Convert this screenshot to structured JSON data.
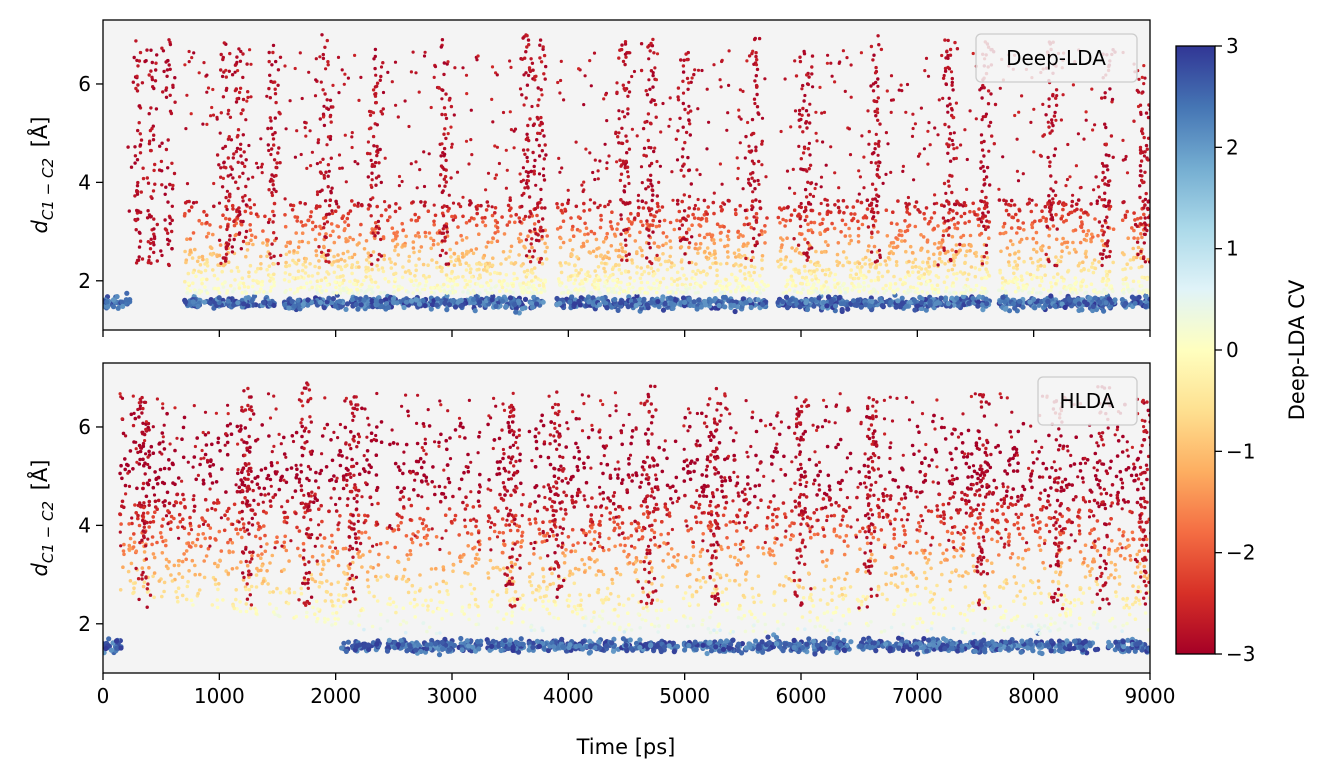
{
  "chart_data": [
    {
      "type": "scatter",
      "panel": "top",
      "legend": "Deep-LDA",
      "legend_position": "upper right",
      "ylabel": "d",
      "ylabel_subscript": "C1 − C2",
      "ylabel_unit": "[Å]",
      "xlabel": "",
      "xlim": [
        0,
        9000
      ],
      "ylim": [
        1.0,
        7.3
      ],
      "x_ticks": [
        0,
        1000,
        2000,
        3000,
        4000,
        5000,
        6000,
        7000,
        8000,
        9000
      ],
      "x_tick_labels_visible": false,
      "y_ticks": [
        2,
        4,
        6
      ],
      "y_tick_labels": [
        "2",
        "4",
        "6"
      ],
      "background": "#f4f4f4",
      "color_by": "Deep-LDA CV",
      "bound_state_d": 1.55,
      "unbound_start_ps": 230,
      "gaps_ps": [
        [
          230,
          700
        ],
        [
          1480,
          1560
        ],
        [
          3830,
          3900
        ],
        [
          5720,
          5800
        ],
        [
          7620,
          7700
        ],
        [
          8700,
          8760
        ]
      ],
      "spikes": [
        {
          "x": 300,
          "y": 6.9
        },
        {
          "x": 420,
          "y": 6.8
        },
        {
          "x": 560,
          "y": 6.9
        },
        {
          "x": 1050,
          "y": 6.9
        },
        {
          "x": 1180,
          "y": 6.8
        },
        {
          "x": 1470,
          "y": 6.8
        },
        {
          "x": 1920,
          "y": 7.0
        },
        {
          "x": 2350,
          "y": 6.8
        },
        {
          "x": 2940,
          "y": 7.0
        },
        {
          "x": 3650,
          "y": 7.0
        },
        {
          "x": 3760,
          "y": 6.9
        },
        {
          "x": 4480,
          "y": 6.9
        },
        {
          "x": 4700,
          "y": 7.0
        },
        {
          "x": 5000,
          "y": 6.9
        },
        {
          "x": 5600,
          "y": 7.0
        },
        {
          "x": 6040,
          "y": 6.9
        },
        {
          "x": 6640,
          "y": 7.0
        },
        {
          "x": 7280,
          "y": 7.0
        },
        {
          "x": 7590,
          "y": 6.9
        },
        {
          "x": 8150,
          "y": 6.9
        },
        {
          "x": 8620,
          "y": 6.7
        },
        {
          "x": 8950,
          "y": 5.9
        }
      ]
    },
    {
      "type": "scatter",
      "panel": "bottom",
      "legend": "HLDA",
      "legend_position": "upper right",
      "ylabel": "d",
      "ylabel_subscript": "C1 − C2",
      "ylabel_unit": "[Å]",
      "xlabel": "Time [ps]",
      "xlim": [
        0,
        9000
      ],
      "ylim": [
        1.0,
        7.3
      ],
      "x_ticks": [
        0,
        1000,
        2000,
        3000,
        4000,
        5000,
        6000,
        7000,
        8000,
        9000
      ],
      "x_tick_labels": [
        "0",
        "1000",
        "2000",
        "3000",
        "4000",
        "5000",
        "6000",
        "7000",
        "8000",
        "9000"
      ],
      "y_ticks": [
        2,
        4,
        6
      ],
      "y_tick_labels": [
        "2",
        "4",
        "6"
      ],
      "background": "#f4f4f4",
      "color_by": "Deep-LDA CV",
      "bound_state_d": 1.55,
      "unbound_start_ps": 140,
      "gaps_ps": [
        [
          2400,
          2440
        ],
        [
          3030,
          3060
        ],
        [
          3250,
          3300
        ],
        [
          3620,
          3660
        ],
        [
          4950,
          4990
        ],
        [
          6430,
          6470
        ],
        [
          8560,
          8640
        ]
      ],
      "spikes": [
        {
          "x": 350,
          "y": 6.6
        },
        {
          "x": 1250,
          "y": 6.8
        },
        {
          "x": 1750,
          "y": 6.9
        },
        {
          "x": 2150,
          "y": 6.7
        },
        {
          "x": 3500,
          "y": 6.6
        },
        {
          "x": 3900,
          "y": 6.8
        },
        {
          "x": 4700,
          "y": 6.9
        },
        {
          "x": 5250,
          "y": 6.8
        },
        {
          "x": 6000,
          "y": 6.7
        },
        {
          "x": 6600,
          "y": 6.7
        },
        {
          "x": 7550,
          "y": 6.7
        },
        {
          "x": 8200,
          "y": 6.6
        },
        {
          "x": 8600,
          "y": 6.9
        },
        {
          "x": 8950,
          "y": 6.6
        }
      ]
    }
  ],
  "colorbar": {
    "label": "Deep-LDA CV",
    "range": [
      -3,
      3
    ],
    "ticks": [
      3,
      2,
      1,
      0,
      -1,
      -2,
      -3
    ],
    "tick_labels": [
      "3",
      "2",
      "1",
      "0",
      "−1",
      "−2",
      "−3"
    ],
    "colormap": "RdYlBu",
    "colors": [
      "#a50026",
      "#d73027",
      "#f46d43",
      "#fdae61",
      "#fee090",
      "#ffffbf",
      "#e0f3f8",
      "#abd9e9",
      "#74add1",
      "#4575b4",
      "#313695"
    ]
  }
}
